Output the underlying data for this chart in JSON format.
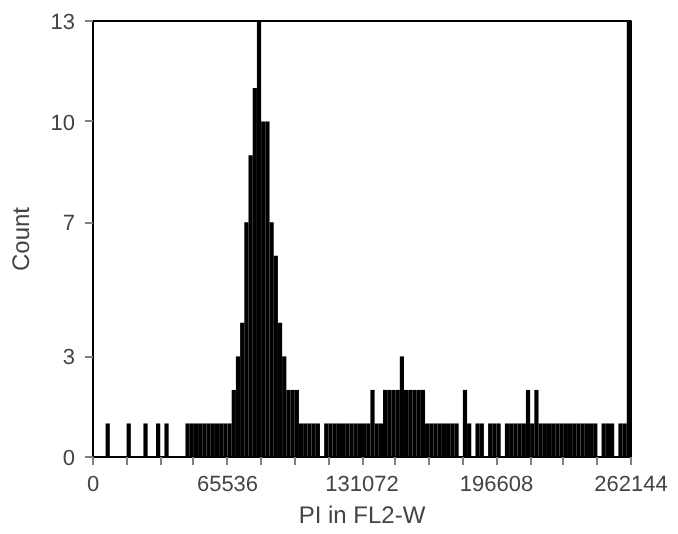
{
  "chart_data": {
    "type": "histogram",
    "xlabel": "PI in FL2-W",
    "ylabel": "Count",
    "color": "#000000",
    "bins": [
      0,
      2048,
      4096,
      6144,
      8192,
      10240,
      12288,
      14336,
      16384,
      18432,
      20480,
      22528,
      24576,
      26624,
      28672,
      30720,
      32768,
      34816,
      36864,
      38912,
      40960,
      43008,
      45056,
      47104,
      49152,
      51200,
      53248,
      55296,
      57344,
      59392,
      61440,
      63488,
      65536,
      67584,
      69632,
      71680,
      73728,
      75776,
      77824,
      79872,
      81920,
      83968,
      86016,
      88064,
      90112,
      92160,
      94208,
      96256,
      98304,
      100352,
      102400,
      104448,
      106496,
      108544,
      110592,
      112640,
      114688,
      116736,
      118784,
      120832,
      122880,
      124928,
      126976,
      129024,
      131072,
      133120,
      135168,
      137216,
      139264,
      141312,
      143360,
      145408,
      147456,
      149504,
      151552,
      153600,
      155648,
      157696,
      159744,
      161792,
      163840,
      165888,
      167936,
      169984,
      172032,
      174080,
      176128,
      178176,
      180224,
      182272,
      184320,
      186368,
      188416,
      190464,
      192512,
      194560,
      196608,
      198656,
      200704,
      202752,
      204800,
      206848,
      208896,
      210944,
      212992,
      215040,
      217088,
      219136,
      221184,
      223232,
      225280,
      227328,
      229376,
      231424,
      233472,
      235520,
      237568,
      239616,
      241664,
      243712,
      245760,
      247808,
      249856,
      251904,
      253952,
      256000,
      258048,
      260096,
      262144
    ],
    "values": [
      0,
      0,
      0,
      1,
      0,
      0,
      0,
      0,
      1,
      0,
      0,
      0,
      1,
      0,
      0,
      1,
      0,
      1,
      0,
      0,
      0,
      0,
      1,
      1,
      1,
      1,
      1,
      1,
      1,
      1,
      1,
      1,
      1,
      2,
      3,
      4,
      7,
      9,
      11,
      13,
      10,
      10,
      7,
      6,
      4,
      3,
      2,
      2,
      2,
      1,
      1,
      1,
      1,
      1,
      0,
      1,
      1,
      1,
      1,
      1,
      1,
      1,
      1,
      1,
      1,
      1,
      2,
      1,
      1,
      2,
      2,
      2,
      2,
      3,
      2,
      2,
      2,
      2,
      2,
      1,
      1,
      1,
      1,
      1,
      1,
      1,
      1,
      0,
      2,
      1,
      0,
      1,
      1,
      0,
      1,
      1,
      1,
      0,
      1,
      1,
      1,
      1,
      1,
      2,
      1,
      2,
      1,
      1,
      1,
      1,
      1,
      1,
      1,
      1,
      1,
      1,
      1,
      1,
      1,
      1,
      0,
      1,
      1,
      1,
      0,
      1,
      1,
      13
    ],
    "xlim": [
      0,
      262144
    ],
    "ylim": [
      0,
      13
    ],
    "xticks": [
      0,
      {
        "value": 16384,
        "label": null
      },
      {
        "value": 32768,
        "label": null
      },
      {
        "value": 49152,
        "label": null
      },
      65536,
      {
        "value": 81920,
        "label": null
      },
      {
        "value": 98304,
        "label": null
      },
      {
        "value": 114688,
        "label": null
      },
      131072,
      {
        "value": 147456,
        "label": null
      },
      {
        "value": 163840,
        "label": null
      },
      {
        "value": 180224,
        "label": null
      },
      196608,
      {
        "value": 212992,
        "label": null
      },
      {
        "value": 229376,
        "label": null
      },
      {
        "value": 245760,
        "label": null
      },
      262144
    ],
    "yticks": [
      0,
      3,
      7,
      10,
      13
    ],
    "grid": false
  }
}
